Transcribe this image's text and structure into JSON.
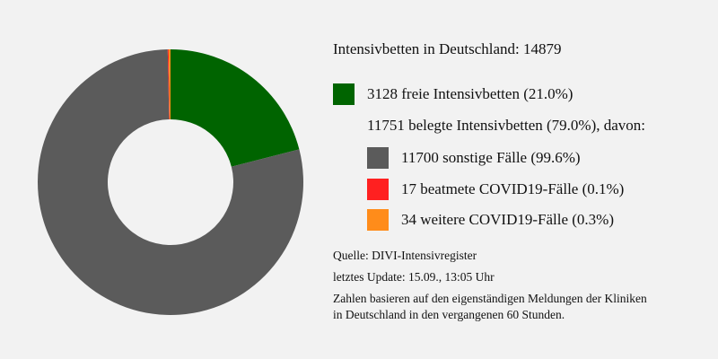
{
  "chart_data": {
    "type": "pie",
    "donut": true,
    "title": "Intensivbetten in Deutschland: 14879",
    "slices": [
      {
        "label": "3128 freie Intensivbetten (21.0%)",
        "value": 3128,
        "color": "#006400"
      },
      {
        "label": "11700 sonstige Fälle (99.6%)",
        "value": 11700,
        "color": "#5b5b5b"
      },
      {
        "label": "17 beatmete COVID19-Fälle (0.1%)",
        "value": 17,
        "color": "#ff2020"
      },
      {
        "label": "34 weitere COVID19-Fälle (0.3%)",
        "value": 34,
        "color": "#ff8c1a"
      }
    ],
    "subheading": "11751 belegte Intensivbetten (79.0%), davon:",
    "legend_position": "right"
  },
  "footer": {
    "source": "Quelle: DIVI-Intensivregister",
    "update": "letztes Update: 15.09., 13:05 Uhr",
    "note_line1": "Zahlen basieren auf den eigenständigen Meldungen der Kliniken",
    "note_line2": "in Deutschland in den vergangenen 60 Stunden."
  }
}
